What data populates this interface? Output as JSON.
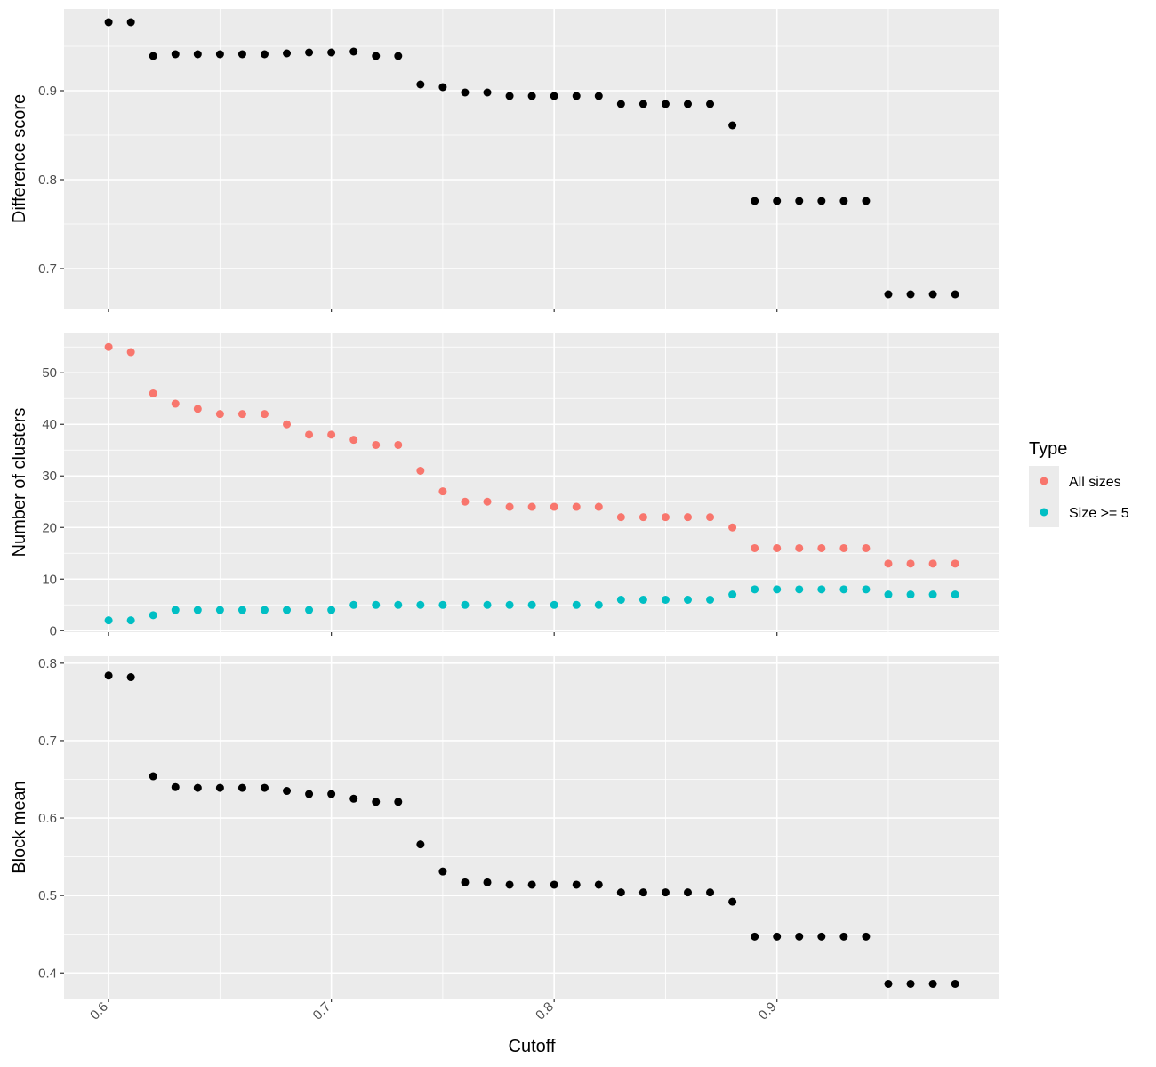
{
  "chart_data": [
    {
      "type": "scatter",
      "title": "",
      "xlabel": "Cutoff",
      "ylabel": "Difference score",
      "xlim": [
        0.58,
        0.9999
      ],
      "ylim": [
        0.655,
        0.992
      ],
      "xticks": [
        0.6,
        0.7,
        0.8,
        0.9
      ],
      "xtick_labels": [
        "0.6",
        "0.7",
        "0.8",
        "0.9"
      ],
      "yticks": [
        0.7,
        0.8,
        0.9
      ],
      "ytick_labels": [
        "0.7",
        "0.8",
        "0.9"
      ],
      "grid": true,
      "point_color": "#000000",
      "x": [
        0.6,
        0.61,
        0.62,
        0.63,
        0.64,
        0.65,
        0.66,
        0.67,
        0.68,
        0.69,
        0.7,
        0.71,
        0.72,
        0.73,
        0.74,
        0.75,
        0.76,
        0.77,
        0.78,
        0.79,
        0.8,
        0.81,
        0.82,
        0.83,
        0.84,
        0.85,
        0.86,
        0.87,
        0.88,
        0.89,
        0.9,
        0.91,
        0.92,
        0.93,
        0.94,
        0.95,
        0.96,
        0.97,
        0.98
      ],
      "y": [
        0.977,
        0.977,
        0.939,
        0.941,
        0.941,
        0.941,
        0.941,
        0.941,
        0.942,
        0.943,
        0.943,
        0.944,
        0.939,
        0.939,
        0.907,
        0.904,
        0.898,
        0.898,
        0.894,
        0.894,
        0.894,
        0.894,
        0.894,
        0.885,
        0.885,
        0.885,
        0.885,
        0.885,
        0.861,
        0.776,
        0.776,
        0.776,
        0.776,
        0.776,
        0.776,
        0.671,
        0.671,
        0.671,
        0.671
      ]
    },
    {
      "type": "scatter",
      "title": "",
      "xlabel": "Cutoff",
      "ylabel": "Number of clusters",
      "xlim": [
        0.58,
        0.9999
      ],
      "ylim": [
        -0.3,
        57.8
      ],
      "xticks": [
        0.6,
        0.7,
        0.8,
        0.9
      ],
      "xtick_labels": [
        "0.6",
        "0.7",
        "0.8",
        "0.9"
      ],
      "yticks": [
        0,
        10,
        20,
        30,
        40,
        50
      ],
      "ytick_labels": [
        "0",
        "10",
        "20",
        "30",
        "40",
        "50"
      ],
      "grid": true,
      "legend": {
        "title": "Type",
        "position": "right",
        "entries": [
          {
            "label": "All sizes",
            "color": "#F8766D"
          },
          {
            "label": "Size >= 5",
            "color": "#00BFC4"
          }
        ]
      },
      "x": [
        0.6,
        0.61,
        0.62,
        0.63,
        0.64,
        0.65,
        0.66,
        0.67,
        0.68,
        0.69,
        0.7,
        0.71,
        0.72,
        0.73,
        0.74,
        0.75,
        0.76,
        0.77,
        0.78,
        0.79,
        0.8,
        0.81,
        0.82,
        0.83,
        0.84,
        0.85,
        0.86,
        0.87,
        0.88,
        0.89,
        0.9,
        0.91,
        0.92,
        0.93,
        0.94,
        0.95,
        0.96,
        0.97,
        0.98
      ],
      "series": [
        {
          "name": "All sizes",
          "color": "#F8766D",
          "values": [
            55,
            54,
            46,
            44,
            43,
            42,
            42,
            42,
            40,
            38,
            38,
            37,
            36,
            36,
            31,
            27,
            25,
            25,
            24,
            24,
            24,
            24,
            24,
            22,
            22,
            22,
            22,
            22,
            20,
            16,
            16,
            16,
            16,
            16,
            16,
            13,
            13,
            13,
            13
          ]
        },
        {
          "name": "Size >= 5",
          "color": "#00BFC4",
          "values": [
            2,
            2,
            3,
            4,
            4,
            4,
            4,
            4,
            4,
            4,
            4,
            5,
            5,
            5,
            5,
            5,
            5,
            5,
            5,
            5,
            5,
            5,
            5,
            6,
            6,
            6,
            6,
            6,
            7,
            8,
            8,
            8,
            8,
            8,
            8,
            7,
            7,
            7,
            7
          ]
        }
      ]
    },
    {
      "type": "scatter",
      "title": "",
      "xlabel": "Cutoff",
      "ylabel": "Block mean",
      "xlim": [
        0.58,
        0.9999
      ],
      "ylim": [
        0.367,
        0.809
      ],
      "xticks": [
        0.6,
        0.7,
        0.8,
        0.9
      ],
      "xtick_labels": [
        "0.6",
        "0.7",
        "0.8",
        "0.9"
      ],
      "yticks": [
        0.4,
        0.5,
        0.6,
        0.7,
        0.8
      ],
      "ytick_labels": [
        "0.4",
        "0.5",
        "0.6",
        "0.7",
        "0.8"
      ],
      "grid": true,
      "point_color": "#000000",
      "x": [
        0.6,
        0.61,
        0.62,
        0.63,
        0.64,
        0.65,
        0.66,
        0.67,
        0.68,
        0.69,
        0.7,
        0.71,
        0.72,
        0.73,
        0.74,
        0.75,
        0.76,
        0.77,
        0.78,
        0.79,
        0.8,
        0.81,
        0.82,
        0.83,
        0.84,
        0.85,
        0.86,
        0.87,
        0.88,
        0.89,
        0.9,
        0.91,
        0.92,
        0.93,
        0.94,
        0.95,
        0.96,
        0.97,
        0.98
      ],
      "y": [
        0.784,
        0.782,
        0.654,
        0.64,
        0.639,
        0.639,
        0.639,
        0.639,
        0.635,
        0.631,
        0.631,
        0.625,
        0.621,
        0.621,
        0.566,
        0.531,
        0.517,
        0.517,
        0.514,
        0.514,
        0.514,
        0.514,
        0.514,
        0.504,
        0.504,
        0.504,
        0.504,
        0.504,
        0.492,
        0.447,
        0.447,
        0.447,
        0.447,
        0.447,
        0.447,
        0.386,
        0.386,
        0.386,
        0.386
      ]
    }
  ],
  "colors": {
    "panel_background": "#EBEBEB",
    "grid_line": "#FFFFFF",
    "tick_mark": "#333333",
    "tick_text": "#4D4D4D"
  }
}
